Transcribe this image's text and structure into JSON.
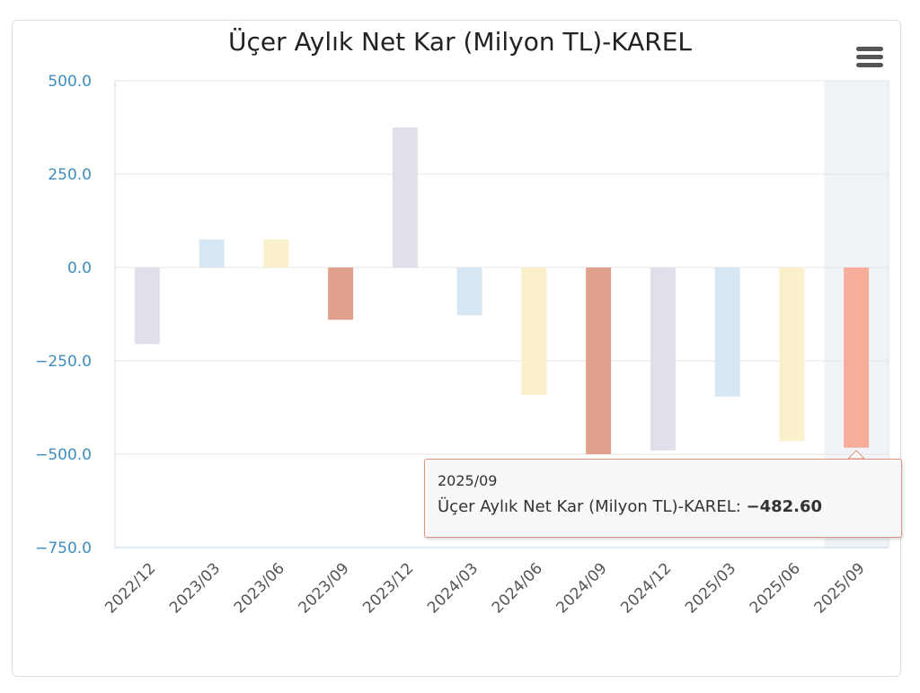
{
  "chart_data": {
    "type": "bar",
    "title": "Üçer Aylık Net Kar (Milyon TL)-KAREL",
    "categories": [
      "2022/12",
      "2023/03",
      "2023/06",
      "2023/09",
      "2023/12",
      "2024/03",
      "2024/06",
      "2024/09",
      "2024/12",
      "2025/03",
      "2025/06",
      "2025/09"
    ],
    "series": [
      {
        "name": "Üçer Aylık Net Kar (Milyon TL)-KAREL",
        "values": [
          -205,
          75,
          75,
          -140,
          375,
          -128,
          -342,
          -500,
          -490,
          -346,
          -465,
          -482.6
        ]
      }
    ],
    "ylim": [
      -750,
      500
    ],
    "yticks": [
      500,
      250,
      0,
      -250,
      -500,
      -750
    ],
    "ytick_labels": [
      "500.0",
      "250.0",
      "0.0",
      "−250.0",
      "−500.0",
      "−750.0"
    ],
    "colors": [
      "#e1dfea",
      "#d6e6f2",
      "#fbf0cc",
      "#e1a08c",
      "#e1dfea",
      "#d6e6f2",
      "#fbf0cc",
      "#e1a08c",
      "#e1dfea",
      "#d6e6f2",
      "#fbf0cc",
      "#f6ae9a"
    ],
    "highlighted_category": "2025/09",
    "grid": true,
    "xlabel": "",
    "ylabel": ""
  },
  "tooltip": {
    "date": "2025/09",
    "series_label": "Üçer Aylık Net Kar (Milyon TL)-KAREL:",
    "value": "−482.60"
  },
  "colors": {
    "axis_label": "#3c8dbc",
    "grid": "#e6e6e6",
    "highlight_band": "#f0f3f8",
    "tooltip_border": "#e0937e"
  },
  "menu_icon": "hamburger-menu-icon"
}
